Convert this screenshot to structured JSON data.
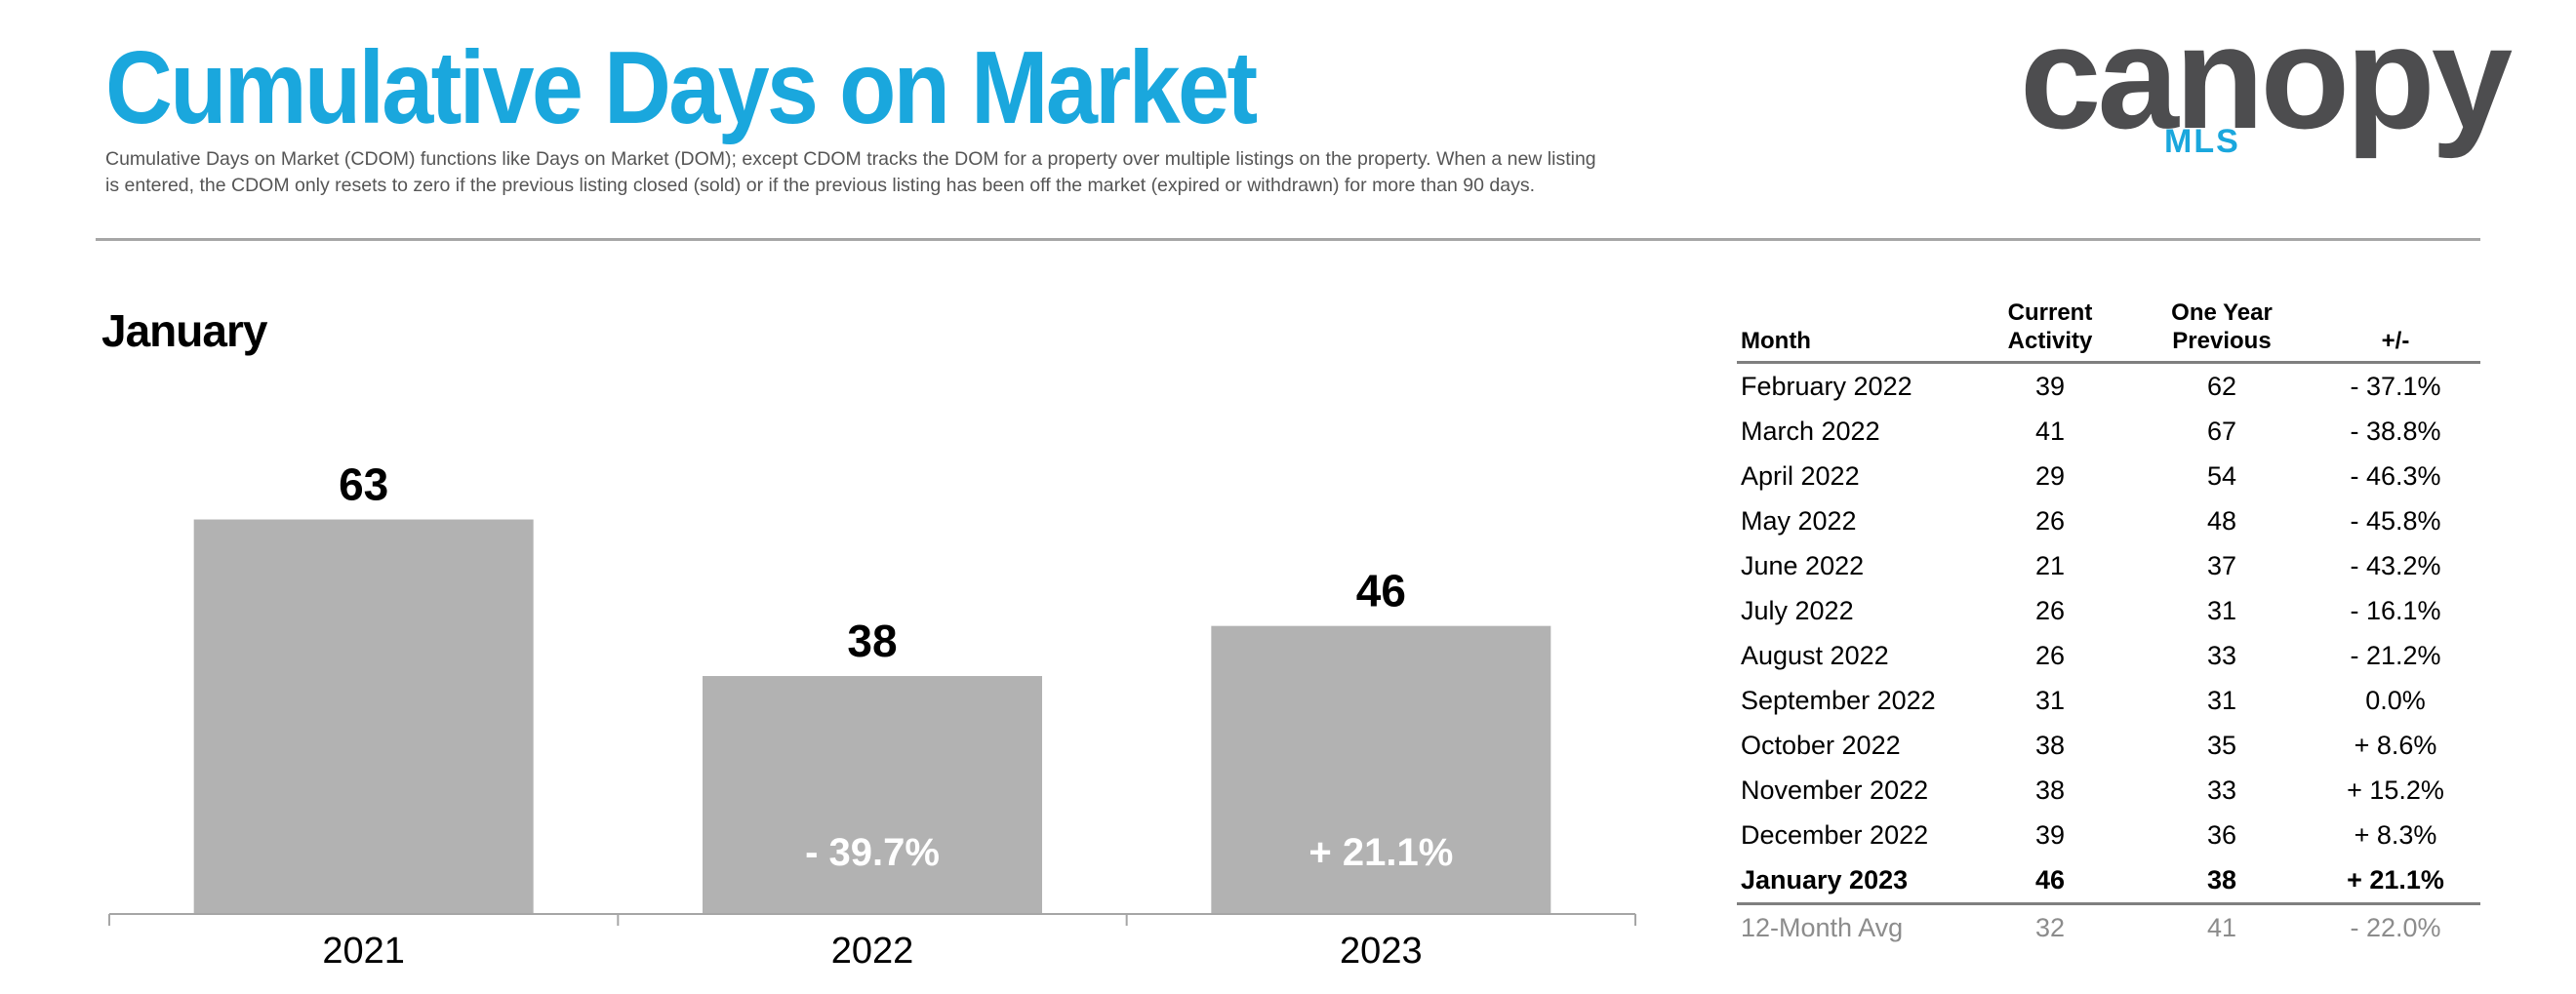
{
  "header": {
    "title": "Cumulative Days on Market",
    "description_line1": "Cumulative Days on Market (CDOM) functions like Days on Market (DOM); except CDOM tracks the DOM for a property over multiple listings on the property. When a new listing",
    "description_line2": "is entered, the CDOM only resets to zero if the previous listing closed (sold) or if the previous listing has been off the market (expired or withdrawn) for more than 90 days."
  },
  "logo": {
    "word": "canopy",
    "sub": "MLS"
  },
  "colors": {
    "accent": "#1aa7dd",
    "bar": "#b2b2b2",
    "logo_gray": "#4d4d4f"
  },
  "chart_data": {
    "type": "bar",
    "title": "January",
    "categories": [
      "2021",
      "2022",
      "2023"
    ],
    "values": [
      63,
      38,
      46
    ],
    "change_labels": [
      "",
      "- 39.7%",
      "+ 21.1%"
    ],
    "ylim": [
      0,
      70
    ],
    "grid": false,
    "legend": "none"
  },
  "table": {
    "headers": {
      "month": "Month",
      "current_1": "Current",
      "current_2": "Activity",
      "previous_1": "One Year",
      "previous_2": "Previous",
      "change": "+/-"
    },
    "rows": [
      {
        "month": "February 2022",
        "current": "39",
        "previous": "62",
        "change": "- 37.1%"
      },
      {
        "month": "March 2022",
        "current": "41",
        "previous": "67",
        "change": "- 38.8%"
      },
      {
        "month": "April 2022",
        "current": "29",
        "previous": "54",
        "change": "- 46.3%"
      },
      {
        "month": "May 2022",
        "current": "26",
        "previous": "48",
        "change": "- 45.8%"
      },
      {
        "month": "June 2022",
        "current": "21",
        "previous": "37",
        "change": "- 43.2%"
      },
      {
        "month": "July 2022",
        "current": "26",
        "previous": "31",
        "change": "- 16.1%"
      },
      {
        "month": "August 2022",
        "current": "26",
        "previous": "33",
        "change": "- 21.2%"
      },
      {
        "month": "September 2022",
        "current": "31",
        "previous": "31",
        "change": "0.0%"
      },
      {
        "month": "October 2022",
        "current": "38",
        "previous": "35",
        "change": "+ 8.6%"
      },
      {
        "month": "November 2022",
        "current": "38",
        "previous": "33",
        "change": "+ 15.2%"
      },
      {
        "month": "December 2022",
        "current": "39",
        "previous": "36",
        "change": "+ 8.3%"
      }
    ],
    "current_row": {
      "month": "January 2023",
      "current": "46",
      "previous": "38",
      "change": "+ 21.1%"
    },
    "avg_row": {
      "month": "12-Month Avg",
      "current": "32",
      "previous": "41",
      "change": "- 22.0%"
    }
  }
}
